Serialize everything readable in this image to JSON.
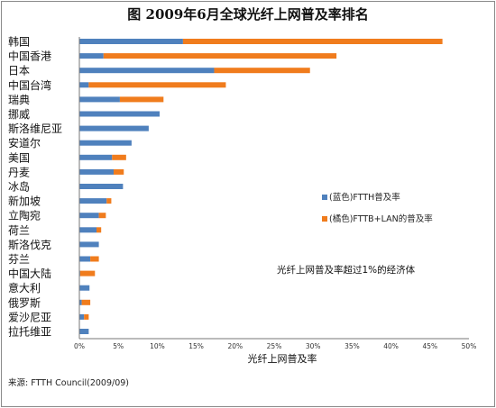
{
  "chart_data": {
    "type": "bar",
    "orientation": "horizontal",
    "stacked": true,
    "title": "图 2009年6月全球光纤上网普及率排名",
    "xlabel": "光纤上网普及率",
    "ylabel": "",
    "xlim": [
      0,
      50
    ],
    "x_ticks": [
      "0%",
      "5%",
      "10%",
      "15%",
      "20%",
      "25%",
      "30%",
      "35%",
      "40%",
      "45%",
      "50%"
    ],
    "categories": [
      "韩国",
      "中国香港",
      "日本",
      "中国台湾",
      "瑞典",
      "挪威",
      "斯洛维尼亚",
      "安道尔",
      "美国",
      "丹麦",
      "冰岛",
      "新加坡",
      "立陶宛",
      "荷兰",
      "斯洛伐克",
      "芬兰",
      "中国大陆",
      "意大利",
      "俄罗斯",
      "爱沙尼亚",
      "拉托维亚"
    ],
    "series": [
      {
        "name": "(蓝色)FTTH普及率",
        "color": "#4f81bd",
        "values": [
          13.3,
          3.1,
          17.3,
          1.2,
          5.2,
          10.3,
          8.9,
          6.7,
          4.2,
          4.4,
          5.6,
          3.5,
          2.5,
          2.2,
          2.5,
          1.4,
          0.1,
          1.3,
          0.3,
          0.6,
          1.2
        ]
      },
      {
        "name": "(橘色)FTTB+LAN的普及率",
        "color": "#f07c1d",
        "values": [
          33.3,
          29.9,
          12.3,
          17.6,
          5.6,
          0.0,
          0.0,
          0.0,
          1.8,
          1.3,
          0.0,
          0.6,
          0.9,
          0.6,
          0.0,
          1.1,
          1.9,
          0.0,
          1.1,
          0.6,
          0.0
        ]
      }
    ],
    "grid": false,
    "legend_position": "right",
    "annotation": "光纤上网普及率超过1%的经济体"
  },
  "source": "来源: FTTH Council(2009/09)"
}
